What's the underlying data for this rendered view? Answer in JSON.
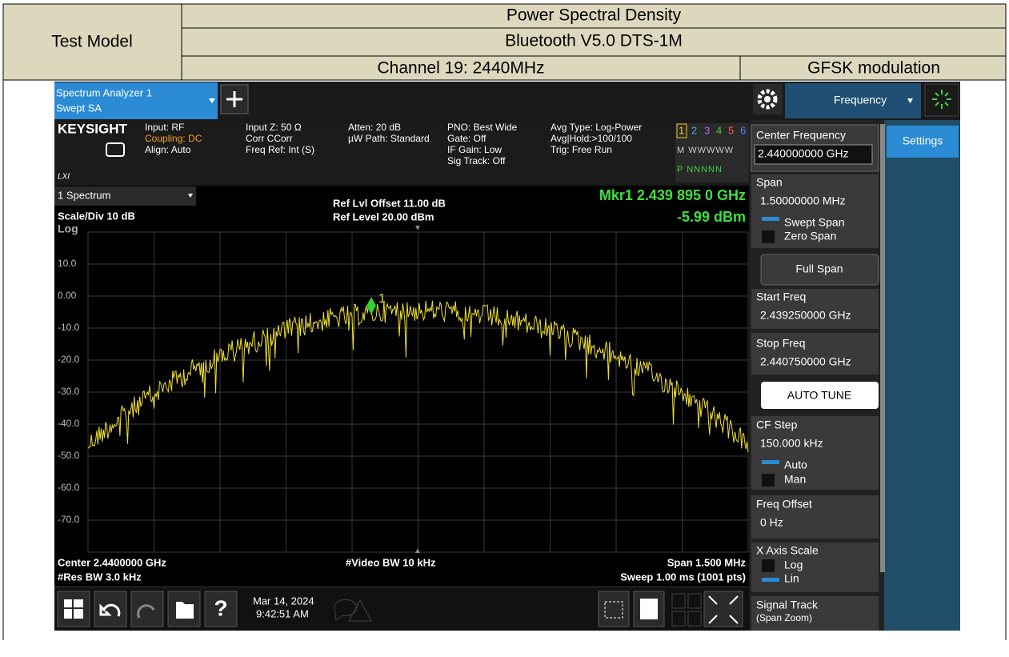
{
  "header": {
    "label": "Test Model",
    "title": "Power Spectral Density",
    "subtitle": "Bluetooth V5.0 DTS-1M",
    "channel": "Channel 19: 2440MHz",
    "modulation": "GFSK modulation"
  },
  "analyzer": {
    "tab": [
      "Spectrum Analyzer 1",
      "Swept SA"
    ],
    "logo": "KEYSIGHT",
    "lxi": "LXI",
    "info": [
      [
        "Input: RF",
        "Coupling: DC",
        "Align: Auto"
      ],
      [
        "Input Z: 50 Ω",
        "Corr CCorr",
        "Freq Ref: Int (S)"
      ],
      [
        "Atten: 20 dB",
        "µW Path: Standard"
      ],
      [
        "PNO: Best Wide",
        "Gate: Off",
        "IF Gain: Low",
        "Sig Track: Off"
      ],
      [
        "Avg Type: Log-Power",
        "Avg|Hold:>100/100",
        "Trig: Free Run"
      ]
    ],
    "traces": [
      "1",
      "2",
      "3",
      "4",
      "5",
      "6"
    ],
    "trace_modes": "M WWWWW",
    "trace_dets": "P NNNNN",
    "plot": {
      "window": "1 Spectrum",
      "scale": "Scale/Div 10 dB",
      "log": "Log",
      "ref_offset": "Ref Lvl Offset 11.00 dB",
      "ref_level": "Ref Level 20.00 dBm",
      "marker": "Mkr1  2.439 895 0 GHz",
      "marker_value": "-5.99 dBm",
      "marker_id": "1",
      "y_labels": [
        "10.0",
        "0.00",
        "-10.0",
        "-20.0",
        "-30.0",
        "-40.0",
        "-50.0",
        "-60.0",
        "-70.0"
      ],
      "center": "Center 2.4400000 GHz",
      "rbw": "#Res BW 3.0 kHz",
      "vbw": "#Video BW 10 kHz",
      "span": "Span 1.500 MHz",
      "sweep": "Sweep 1.00 ms (1001 pts)"
    },
    "taskbar": {
      "help": "?",
      "date": "Mar 14, 2024",
      "time": "9:42:51 AM"
    },
    "panel": {
      "menu": "Frequency",
      "settings": "Settings",
      "center_label": "Center Frequency",
      "center_value": "2.440000000 GHz",
      "span_label": "Span",
      "span_value": "1.50000000 MHz",
      "swept_span": "Swept Span",
      "zero_span": "Zero Span",
      "full_span": "Full Span",
      "start_label": "Start Freq",
      "start_value": "2.439250000 GHz",
      "stop_label": "Stop Freq",
      "stop_value": "2.440750000 GHz",
      "auto_tune": "AUTO TUNE",
      "cf_step_label": "CF Step",
      "cf_step_value": "150.000 kHz",
      "auto": "Auto",
      "man": "Man",
      "offset_label": "Freq Offset",
      "offset_value": "0 Hz",
      "x_scale_label": "X Axis Scale",
      "x_log": "Log",
      "x_lin": "Lin",
      "signal_track": "Signal Track",
      "span_zoom": "(Span Zoom)"
    }
  }
}
